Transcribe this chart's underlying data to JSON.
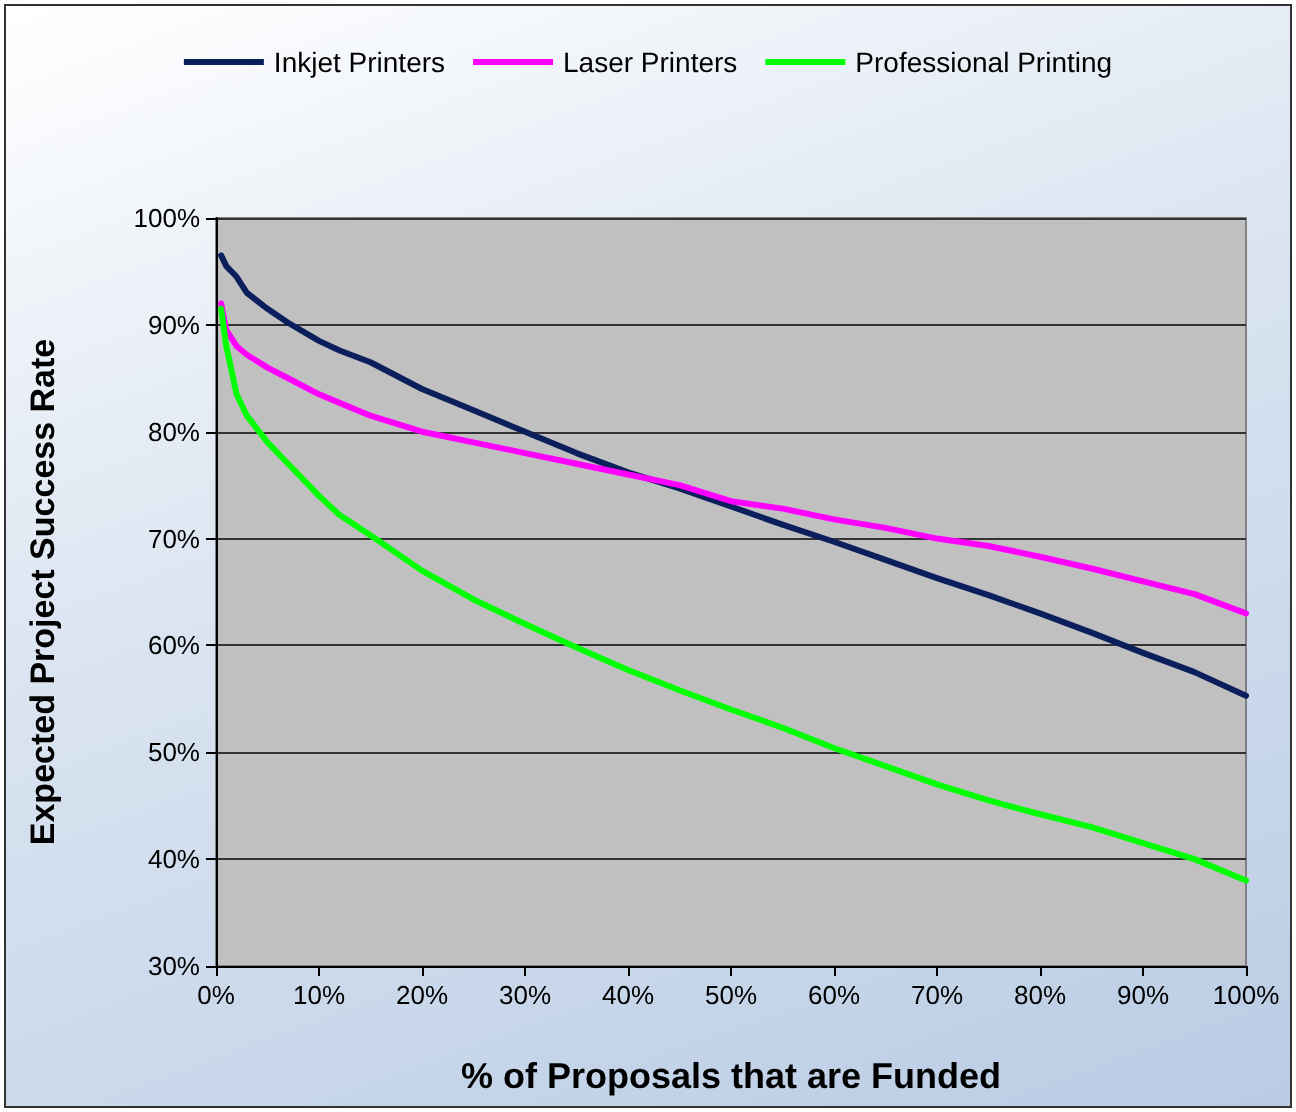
{
  "chart_data": {
    "type": "line",
    "xlabel": "% of Proposals that are Funded",
    "ylabel": "Expected Project Success Rate",
    "x": [
      0.5,
      1,
      2,
      3,
      5,
      7,
      10,
      12,
      15,
      20,
      25,
      30,
      35,
      40,
      45,
      50,
      55,
      60,
      65,
      70,
      75,
      80,
      85,
      90,
      95,
      100
    ],
    "series": [
      {
        "name": "Inkjet Printers",
        "color": "#0a1f5c",
        "values": [
          96.5,
          95.5,
          94.5,
          93,
          91.5,
          90.2,
          88.5,
          87.6,
          86.5,
          84,
          82,
          80,
          78,
          76.2,
          74.7,
          73,
          71.3,
          69.7,
          68,
          66.3,
          64.7,
          63,
          61.2,
          59.3,
          57.5,
          55.3
        ]
      },
      {
        "name": "Laser Printers",
        "color": "#ff00ff",
        "values": [
          92,
          89.5,
          88,
          87.2,
          86,
          85,
          83.5,
          82.7,
          81.5,
          80,
          79,
          78,
          77,
          76,
          75,
          73.5,
          72.8,
          71.8,
          71,
          70,
          69.3,
          68.3,
          67.2,
          66,
          64.8,
          63
        ]
      },
      {
        "name": "Professional Printing",
        "color": "#00ff00",
        "values": [
          91.5,
          88,
          83.5,
          81.5,
          79,
          77,
          74,
          72.2,
          70.3,
          67,
          64.3,
          62,
          59.8,
          57.7,
          55.8,
          54,
          52.3,
          50.4,
          48.7,
          47,
          45.5,
          44.2,
          43,
          41.5,
          40,
          38
        ]
      }
    ],
    "xlim": [
      0,
      100
    ],
    "ylim": [
      30,
      100
    ],
    "xticks": [
      {
        "value": 0,
        "label": "0%"
      },
      {
        "value": 10,
        "label": "10%"
      },
      {
        "value": 20,
        "label": "20%"
      },
      {
        "value": 30,
        "label": "30%"
      },
      {
        "value": 40,
        "label": "40%"
      },
      {
        "value": 50,
        "label": "50%"
      },
      {
        "value": 60,
        "label": "60%"
      },
      {
        "value": 70,
        "label": "70%"
      },
      {
        "value": 80,
        "label": "80%"
      },
      {
        "value": 90,
        "label": "90%"
      },
      {
        "value": 100,
        "label": "100%"
      }
    ],
    "yticks": [
      {
        "value": 30,
        "label": "30%"
      },
      {
        "value": 40,
        "label": "40%"
      },
      {
        "value": 50,
        "label": "50%"
      },
      {
        "value": 60,
        "label": "60%"
      },
      {
        "value": 70,
        "label": "70%"
      },
      {
        "value": 80,
        "label": "80%"
      },
      {
        "value": 90,
        "label": "90%"
      },
      {
        "value": 100,
        "label": "100%"
      }
    ],
    "grid": "y",
    "legend": "top",
    "marker": "none",
    "line_style": "solid"
  }
}
